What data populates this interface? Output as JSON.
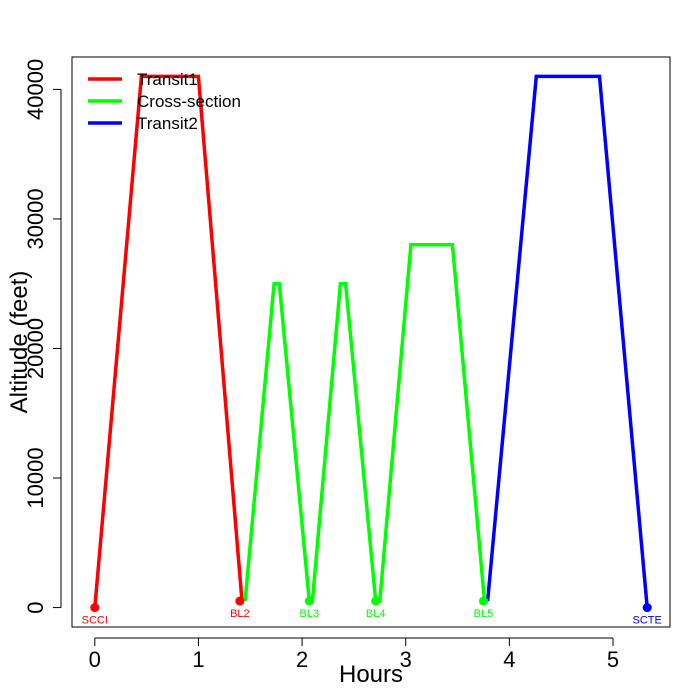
{
  "chart_data": {
    "type": "line",
    "title": "",
    "xlabel": "Hours",
    "ylabel": "Altitude (feet)",
    "xlim": [
      -0.22,
      5.55
    ],
    "ylim": [
      -1500,
      42500
    ],
    "xticks": [
      0,
      1,
      2,
      3,
      4,
      5
    ],
    "yticks": [
      0,
      10000,
      20000,
      30000,
      40000
    ],
    "grid": false,
    "legend_position": "top-left",
    "series": [
      {
        "name": "Transit1",
        "color": "#ff0000",
        "x": [
          0,
          0.45,
          1.0,
          1.42
        ],
        "y": [
          0,
          41000,
          41000,
          500
        ]
      },
      {
        "name": "Cross-section",
        "color": "#00ff00",
        "x": [
          1.45,
          1.73,
          1.78,
          2.07,
          2.1,
          2.37,
          2.42,
          2.71,
          2.75,
          3.05,
          3.45,
          3.76
        ],
        "y": [
          500,
          25000,
          25000,
          500,
          500,
          25000,
          25000,
          500,
          500,
          28000,
          28000,
          500
        ]
      },
      {
        "name": "Transit2",
        "color": "#0000ff",
        "x": [
          3.79,
          4.26,
          4.87,
          5.33
        ],
        "y": [
          500,
          41000,
          41000,
          0
        ]
      }
    ],
    "points": [
      {
        "label": "SCCI",
        "x": 0,
        "y": 0,
        "color": "#ff0000"
      },
      {
        "label": "BL2",
        "x": 1.4,
        "y": 500,
        "color": "#ff0000"
      },
      {
        "label": "BL3",
        "x": 2.07,
        "y": 500,
        "color": "#00ff00"
      },
      {
        "label": "BL4",
        "x": 2.71,
        "y": 500,
        "color": "#00ff00"
      },
      {
        "label": "BL5",
        "x": 3.75,
        "y": 500,
        "color": "#00ff00"
      },
      {
        "label": "SCTE",
        "x": 5.33,
        "y": 0,
        "color": "#0000ff"
      }
    ]
  }
}
